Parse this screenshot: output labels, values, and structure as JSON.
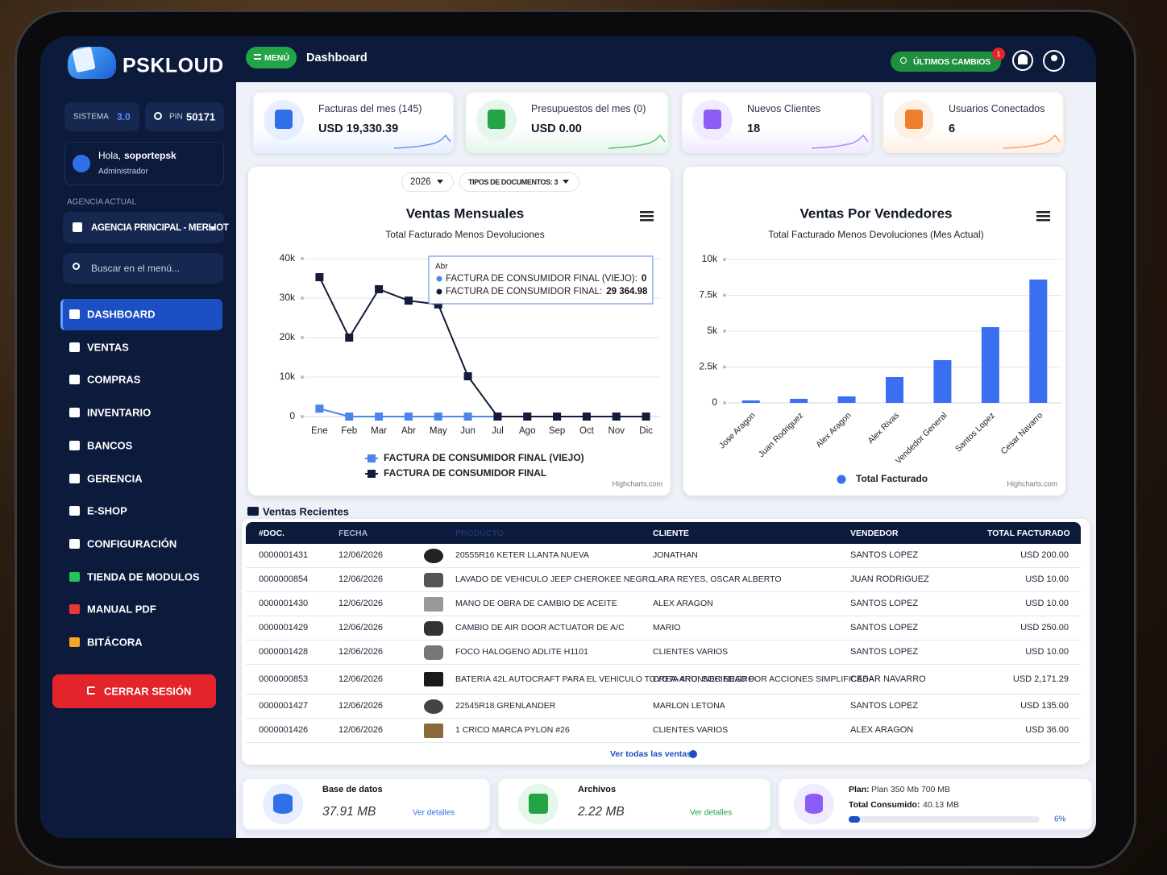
{
  "brand": "PSKLOUD",
  "sidebar": {
    "system_label": "SISTEMA",
    "system_version": "3.0",
    "pin_label": "PIN",
    "pin": "50171",
    "greeting": "Hola,",
    "user": "soportepsk",
    "role": "Administrador",
    "agency_label": "AGENCIA ACTUAL",
    "agency": "AGENCIA PRINCIPAL - MERLIOT",
    "search_placeholder": "Buscar en el menú...",
    "menu": [
      "DASHBOARD",
      "VENTAS",
      "COMPRAS",
      "INVENTARIO",
      "BANCOS",
      "GERENCIA",
      "E-SHOP",
      "CONFIGURACIÓN",
      "TIENDA DE MODULOS",
      "MANUAL PDF",
      "BITÁCORA"
    ],
    "logout": "CERRAR SESIÓN"
  },
  "header": {
    "menu_button": "MENÚ",
    "title": "Dashboard",
    "changes_button": "ÚLTIMOS CAMBIOS",
    "notification_count": "1"
  },
  "stats": [
    {
      "label": "Facturas del mes (145)",
      "value": "USD 19,330.39"
    },
    {
      "label": "Presupuestos del mes (0)",
      "value": "USD 0.00"
    },
    {
      "label": "Nuevos Clientes",
      "value": "18"
    },
    {
      "label": "Usuarios Conectados",
      "value": "6"
    }
  ],
  "monthly_chart": {
    "type": "line",
    "filters": [
      "2026",
      "TIPOS DE DOCUMENTOS: 3"
    ],
    "title": "Ventas Mensuales",
    "subtitle": "Total Facturado Menos Devoluciones",
    "categories": [
      "Ene",
      "Feb",
      "Mar",
      "Abr",
      "May",
      "Jun",
      "Jul",
      "Ago",
      "Sep",
      "Oct",
      "Nov",
      "Dic"
    ],
    "series": [
      {
        "name": "FACTURA DE CONSUMIDOR FINAL (VIEJO)",
        "color": "#4a86e8",
        "values": [
          2000,
          0,
          0,
          0,
          0,
          0,
          0,
          0,
          0,
          0,
          0,
          0
        ]
      },
      {
        "name": "FACTURA DE CONSUMIDOR FINAL",
        "color": "#141c3a",
        "values": [
          35300,
          20000,
          32250,
          29364.98,
          28400,
          10200,
          0,
          0,
          0,
          0,
          0,
          0
        ]
      }
    ],
    "ylim": [
      0,
      40000
    ],
    "yticks": [
      0,
      {
        "value": 10000,
        "label": "10k"
      },
      {
        "value": 20000,
        "label": "20k"
      },
      {
        "value": 30000,
        "label": "30k"
      },
      {
        "value": 40000,
        "label": "40k"
      }
    ],
    "grid": true,
    "tooltip": {
      "title": "Abr",
      "items": [
        {
          "name": "FACTURA DE CONSUMIDOR FINAL (VIEJO):",
          "value": "0"
        },
        {
          "name": "FACTURA DE CONSUMIDOR FINAL:",
          "value": "29 364.98"
        }
      ]
    },
    "credits": "Highcharts.com"
  },
  "sellers_chart": {
    "type": "bar",
    "title": "Ventas Por Vendedores",
    "subtitle": "Total Facturado Menos Devoluciones (Mes Actual)",
    "categories": [
      "Jose Aragon",
      "Juan Rodriguez",
      "Alex Aragon",
      "Alex Rivas",
      "Vendedor General",
      "Santos Lopez",
      "Cesar Navarro"
    ],
    "series": [
      {
        "name": "Total Facturado",
        "color": "#3a6ff2",
        "values": [
          170,
          280,
          450,
          1800,
          2980,
          5280,
          8600
        ]
      }
    ],
    "ylim": [
      0,
      10000
    ],
    "yticks": [
      0,
      {
        "value": 2500,
        "label": "2.5k"
      },
      {
        "value": 5000,
        "label": "5k"
      },
      {
        "value": 7500,
        "label": "7.5k"
      },
      {
        "value": 10000,
        "label": "10k"
      }
    ],
    "grid": true,
    "credits": "Highcharts.com"
  },
  "recent_sales": {
    "title": "Ventas Recientes",
    "columns": [
      "#DOC.",
      "FECHA",
      "PRODUCTO",
      "CLIENTE",
      "VENDEDOR",
      "TOTAL FACTURADO"
    ],
    "rows": [
      [
        "0000001431",
        "12/06/2026",
        "20555R16 KETER LLANTA NUEVA",
        "JONATHAN",
        "SANTOS LOPEZ",
        "USD 200.00"
      ],
      [
        "0000000854",
        "12/06/2026",
        "LAVADO DE VEHICULO JEEP CHEROKEE NEGRO",
        "LARA REYES, OSCAR ALBERTO",
        "JUAN RODRIGUEZ",
        "USD 10.00"
      ],
      [
        "0000001430",
        "12/06/2026",
        "MANO DE OBRA DE CAMBIO DE ACEITE",
        "ALEX ARAGON",
        "SANTOS LOPEZ",
        "USD 10.00"
      ],
      [
        "0000001429",
        "12/06/2026",
        "CAMBIO DE AIR DOOR ACTUATOR DE A/C",
        "MARIO",
        "SANTOS LOPEZ",
        "USD 250.00"
      ],
      [
        "0000001428",
        "12/06/2026",
        "FOCO HALOGENO ADLITE H1101",
        "CLIENTES VARIOS",
        "SANTOS LOPEZ",
        "USD 10.00"
      ],
      [
        "0000000853",
        "12/06/2026",
        "BATERIA 42L AUTOCRAFT PARA EL VEHICULO TOYOTA 4RUNNER NEGRO",
        "CREA-ARO, SOCIEDAD POR ACCIONES SIMPLIFICADA",
        "CESAR NAVARRO",
        "USD 2,171.29"
      ],
      [
        "0000001427",
        "12/06/2026",
        "22545R18 GRENLANDER",
        "MARLON LETONA",
        "SANTOS LOPEZ",
        "USD 135.00"
      ],
      [
        "0000001426",
        "12/06/2026",
        "1 CRICO MARCA PYLON #26",
        "CLIENTES VARIOS",
        "ALEX ARAGON",
        "USD 36.00"
      ]
    ],
    "view_all": "Ver todas las ventas"
  },
  "storage": {
    "database": {
      "label": "Base de datos",
      "value": "37.91 MB",
      "link": "Ver detalles"
    },
    "files": {
      "label": "Archivos",
      "value": "2.22 MB",
      "link": "Ver detalles"
    },
    "plan": {
      "plan_label": "Plan:",
      "plan": "Plan 350 Mb 700 MB",
      "used_label": "Total Consumido:",
      "used": "40.13 MB",
      "percent": 6,
      "percent_label": "6%"
    }
  }
}
